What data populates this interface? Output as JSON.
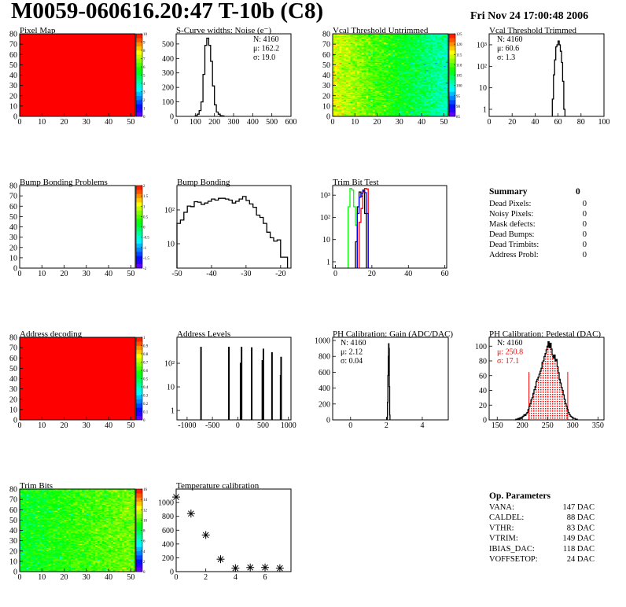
{
  "header": {
    "title": "M0059-060616.20:47 T-10b (C8)",
    "date": "Fri Nov 24 17:00:48 2006"
  },
  "summary": {
    "title": "Summary",
    "total": "0",
    "rows": [
      {
        "label": "Dead Pixels:",
        "value": "0"
      },
      {
        "label": "Noisy Pixels:",
        "value": "0"
      },
      {
        "label": "Mask defects:",
        "value": "0"
      },
      {
        "label": "Dead Bumps:",
        "value": "0"
      },
      {
        "label": "Dead Trimbits:",
        "value": "0"
      },
      {
        "label": "Address Probl:",
        "value": "0"
      }
    ]
  },
  "op_parameters": {
    "title": "Op. Parameters",
    "rows": [
      {
        "label": "VANA:",
        "value": "147 DAC"
      },
      {
        "label": "CALDEL:",
        "value": "88 DAC"
      },
      {
        "label": "VTHR:",
        "value": "83 DAC"
      },
      {
        "label": "VTRIM:",
        "value": "149 DAC"
      },
      {
        "label": "IBIAS_DAC:",
        "value": "118 DAC"
      },
      {
        "label": "VOFFSETOP:",
        "value": "24 DAC"
      }
    ]
  },
  "colors": {
    "hist": "#000000",
    "red": "#ff0000",
    "blue": "#0000ff",
    "green": "#00ff00"
  },
  "chart_data": [
    {
      "type": "heatmap",
      "title": "Pixel Map",
      "xlim": [
        0,
        52
      ],
      "ylim": [
        0,
        80
      ],
      "zlim": [
        0,
        10
      ],
      "fill": "uniform",
      "z_value": 10,
      "xticks": [
        0,
        10,
        20,
        30,
        40,
        50
      ],
      "yticks": [
        0,
        10,
        20,
        30,
        40,
        50,
        60,
        70,
        80
      ],
      "z_ticks": [
        "0",
        "1",
        "2",
        "3",
        "4",
        "5",
        "6",
        "7",
        "8",
        "9",
        "10"
      ]
    },
    {
      "type": "bar",
      "title": "S-Curve widths: Noise (e⁻)",
      "xlim": [
        0,
        600
      ],
      "ylim": [
        0,
        570
      ],
      "ylog": false,
      "xticks": [
        0,
        100,
        200,
        300,
        400,
        500,
        600
      ],
      "yticks": [
        0,
        100,
        200,
        300,
        400,
        500
      ],
      "series": [
        {
          "color": "#000000",
          "bin_width": 10,
          "x": [
            100,
            110,
            120,
            130,
            140,
            150,
            160,
            170,
            180,
            190,
            200,
            210,
            220,
            230,
            240
          ],
          "y": [
            5,
            15,
            40,
            100,
            290,
            490,
            540,
            490,
            380,
            210,
            80,
            30,
            15,
            5,
            3
          ]
        }
      ],
      "stats": [
        "N: 4160",
        "μ: 162.2",
        "σ: 19.0"
      ]
    },
    {
      "type": "heatmap",
      "title": "Vcal Threshold Untrimmed",
      "xlim": [
        0,
        52
      ],
      "ylim": [
        0,
        80
      ],
      "zlim": [
        85,
        125
      ],
      "fill": "noisy",
      "z_mean_left": 115,
      "z_mean_right": 101,
      "xticks": [
        0,
        10,
        20,
        30,
        40,
        50
      ],
      "yticks": [
        0,
        10,
        20,
        30,
        40,
        50,
        60,
        70,
        80
      ],
      "z_ticks": [
        "85",
        "90",
        "95",
        "100",
        "105",
        "110",
        "115",
        "120",
        "125"
      ]
    },
    {
      "type": "bar",
      "title": "Vcal Threshold Trimmed",
      "xlim": [
        0,
        100
      ],
      "ylim": [
        0.47,
        3240
      ],
      "ylog": true,
      "xticks": [
        0,
        20,
        40,
        60,
        80,
        100
      ],
      "yticks": [
        1,
        10,
        100,
        1000
      ],
      "ytick_labels": [
        "1",
        "10",
        "10²",
        "10³"
      ],
      "series": [
        {
          "color": "#000000",
          "bin_width": 1,
          "x": [
            55,
            56,
            57,
            58,
            59,
            60,
            61,
            62,
            63,
            64,
            65
          ],
          "y": [
            3,
            40,
            200,
            800,
            1000,
            1500,
            1000,
            500,
            150,
            20,
            1
          ]
        }
      ],
      "stats": [
        "N: 4160",
        "μ: 60.6",
        "σ:  1.3"
      ]
    },
    {
      "type": "heatmap",
      "title": "Bump Bonding Problems",
      "xlim": [
        0,
        52
      ],
      "ylim": [
        0,
        80
      ],
      "zlim": [
        -2,
        2
      ],
      "fill": "empty",
      "xticks": [
        0,
        10,
        20,
        30,
        40,
        50
      ],
      "yticks": [
        0,
        10,
        20,
        30,
        40,
        50,
        60,
        70,
        80
      ],
      "z_ticks": [
        "-2",
        "-1.5",
        "-1",
        "-0.5",
        "0",
        "0.5",
        "1",
        "1.5",
        "2"
      ]
    },
    {
      "type": "bar",
      "title": "Bump Bonding",
      "xlim": [
        -50,
        -17
      ],
      "ylim": [
        1.9,
        525
      ],
      "ylog": true,
      "xticks": [
        -50,
        -40,
        -30,
        -20
      ],
      "yticks": [
        10,
        100
      ],
      "ytick_labels": [
        "10",
        "10²"
      ],
      "series": [
        {
          "color": "#000000",
          "bin_width": 1,
          "x": [
            -50,
            -49,
            -48,
            -47,
            -46,
            -45,
            -44,
            -43,
            -42,
            -41,
            -40,
            -39,
            -38,
            -37,
            -36,
            -35,
            -34,
            -33,
            -32,
            -31,
            -30,
            -29,
            -28,
            -27,
            -26,
            -25,
            -24,
            -23,
            -22,
            -21,
            -20,
            -19
          ],
          "y": [
            40,
            50,
            85,
            130,
            125,
            175,
            170,
            145,
            160,
            180,
            210,
            195,
            220,
            220,
            210,
            195,
            160,
            180,
            210,
            250,
            190,
            150,
            120,
            70,
            60,
            40,
            22,
            15,
            12,
            13,
            4,
            4
          ]
        }
      ]
    },
    {
      "type": "bar",
      "title": "Trim Bit Test",
      "xlim": [
        -1.5,
        61
      ],
      "ylim": [
        0.52,
        2700
      ],
      "ylog": true,
      "xticks": [
        0,
        20,
        40,
        60
      ],
      "yticks": [
        1,
        10,
        100,
        1000
      ],
      "ytick_labels": [
        "1",
        "10",
        "10²",
        "10³"
      ],
      "series": [
        {
          "color": "#00ff00",
          "bin_width": 1,
          "x": [
            7,
            8,
            9,
            10,
            11
          ],
          "y": [
            300,
            2000,
            1700,
            300,
            45
          ]
        },
        {
          "color": "#000000",
          "bin_width": 1,
          "x": [
            11,
            12,
            13,
            14,
            15,
            16
          ],
          "y": [
            8,
            300,
            1400,
            900,
            1500,
            150
          ]
        },
        {
          "color": "#ff0000",
          "bin_width": 1,
          "x": [
            13,
            14,
            15,
            16,
            17
          ],
          "y": [
            60,
            250,
            1300,
            2000,
            1900
          ]
        },
        {
          "color": "#0000ff",
          "bin_width": 1,
          "x": [
            12,
            13,
            14,
            15,
            16,
            17
          ],
          "y": [
            150,
            800,
            1200,
            1700,
            1300,
            150
          ]
        }
      ]
    },
    {
      "type": "heatmap",
      "title": "Address decoding",
      "xlim": [
        0,
        52
      ],
      "ylim": [
        0,
        80
      ],
      "zlim": [
        0,
        1
      ],
      "fill": "uniform",
      "z_value": 1,
      "xticks": [
        0,
        10,
        20,
        30,
        40,
        50
      ],
      "yticks": [
        0,
        10,
        20,
        30,
        40,
        50,
        60,
        70,
        80
      ],
      "z_ticks": [
        "0",
        "0.1",
        "0.2",
        "0.3",
        "0.4",
        "0.5",
        "0.6",
        "0.7",
        "0.8",
        "0.9",
        "1"
      ]
    },
    {
      "type": "bar",
      "title": "Address Levels",
      "xlim": [
        -1200,
        1050
      ],
      "ylim": [
        0.4,
        1260
      ],
      "ylog": true,
      "xticks": [
        -1000,
        -500,
        0,
        500,
        1000
      ],
      "yticks": [
        1,
        10,
        100
      ],
      "ytick_labels": [
        "1",
        "10",
        "10²"
      ],
      "series": [
        {
          "color": "#000000",
          "bin_width": 10,
          "x": [
            -730,
            -180,
            50,
            70,
            270,
            480,
            500,
            670,
            840,
            850
          ],
          "y": [
            480,
            480,
            100,
            480,
            450,
            130,
            400,
            280,
            30,
            180
          ]
        }
      ]
    },
    {
      "type": "bar",
      "title": "PH Calibration: Gain (ADC/DAC)",
      "xlim": [
        -1,
        5.45
      ],
      "ylim": [
        0,
        1040
      ],
      "ylog": false,
      "xticks": [
        0,
        2,
        4
      ],
      "yticks": [
        0,
        200,
        400,
        600,
        800,
        1000
      ],
      "series": [
        {
          "color": "#000000",
          "bin_width": 0.02,
          "x": [
            2.04,
            2.06,
            2.08,
            2.1,
            2.12,
            2.14,
            2.16,
            2.18
          ],
          "y": [
            20,
            220,
            560,
            800,
            960,
            900,
            420,
            60
          ]
        }
      ],
      "stats": [
        "N: 4160",
        "μ: 2.12",
        "σ: 0.04"
      ]
    },
    {
      "type": "bar",
      "title": "PH Calibration: Pedestal (DAC)",
      "xlim": [
        134,
        362
      ],
      "ylim": [
        0,
        112
      ],
      "ylog": false,
      "xticks": [
        150,
        200,
        250,
        300,
        350
      ],
      "yticks": [
        0,
        20,
        40,
        60,
        80,
        100
      ],
      "series": [
        {
          "color": "#000000",
          "bin_width": 2,
          "x": [
            185,
            187,
            189,
            191,
            193,
            195,
            197,
            199,
            201,
            203,
            205,
            207,
            209,
            211,
            213,
            215,
            217,
            219,
            221,
            223,
            225,
            227,
            229,
            231,
            233,
            235,
            237,
            239,
            241,
            243,
            245,
            247,
            249,
            251,
            253,
            255,
            257,
            259,
            261,
            263,
            265,
            267,
            269,
            271,
            273,
            275,
            277,
            279,
            281,
            283,
            285,
            287,
            289,
            291,
            293,
            295,
            297,
            299,
            301,
            303,
            305,
            307
          ],
          "y": [
            0,
            1,
            1,
            2,
            1,
            3,
            2,
            4,
            5,
            7,
            6,
            8,
            10,
            14,
            18,
            22,
            27,
            30,
            36,
            41,
            45,
            52,
            55,
            58,
            62,
            66,
            70,
            78,
            80,
            86,
            90,
            95,
            100,
            106,
            98,
            104,
            96,
            88,
            84,
            88,
            80,
            82,
            72,
            64,
            55,
            50,
            44,
            40,
            34,
            28,
            22,
            18,
            14,
            10,
            7,
            5,
            4,
            3,
            2,
            2,
            1,
            1
          ]
        }
      ],
      "fit_range": [
        213,
        290
      ],
      "stats": [
        "N: 4160",
        "μ: 250.8",
        "σ: 17.1"
      ],
      "stats_colors": [
        "#000000",
        "#ff0000",
        "#ff0000"
      ]
    },
    {
      "type": "heatmap",
      "title": "Trim Bits",
      "xlim": [
        0,
        52
      ],
      "ylim": [
        0,
        80
      ],
      "zlim": [
        0,
        16
      ],
      "fill": "noisy",
      "z_mean_left": 8.5,
      "z_mean_right": 10.5,
      "xticks": [
        0,
        10,
        20,
        30,
        40,
        50
      ],
      "yticks": [
        0,
        10,
        20,
        30,
        40,
        50,
        60,
        70,
        80
      ],
      "z_ticks": [
        "0",
        "2",
        "4",
        "6",
        "8",
        "10",
        "12",
        "14",
        "16"
      ]
    },
    {
      "type": "scatter",
      "title": "Temperature calibration",
      "xlim": [
        0,
        7.75
      ],
      "ylim": [
        0,
        1195
      ],
      "xticks": [
        0,
        2,
        4,
        6
      ],
      "yticks": [
        0,
        200,
        400,
        600,
        800,
        1000
      ],
      "series": [
        {
          "color": "#000000",
          "marker": "asterisk",
          "x": [
            0,
            1,
            2,
            3,
            4,
            5,
            6,
            7
          ],
          "y": [
            1080,
            840,
            530,
            180,
            50,
            60,
            60,
            50
          ]
        }
      ]
    }
  ]
}
